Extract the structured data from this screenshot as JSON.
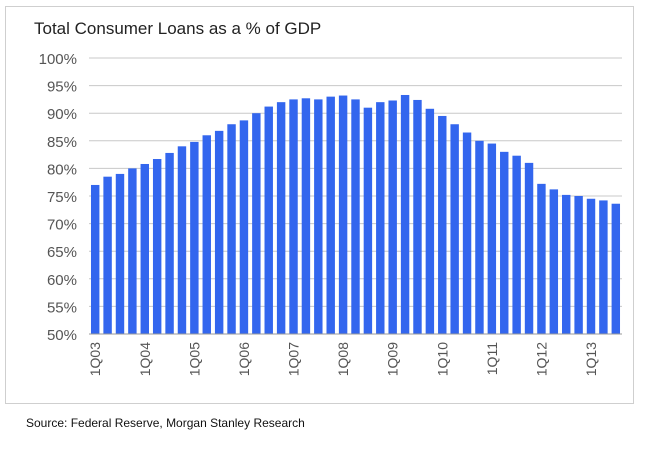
{
  "chart_data": {
    "type": "bar",
    "title": "Total Consumer Loans as a % of GDP",
    "xlabel": "",
    "ylabel": "",
    "ylim": [
      50,
      100
    ],
    "yticks": [
      "50%",
      "55%",
      "60%",
      "65%",
      "70%",
      "75%",
      "80%",
      "85%",
      "90%",
      "95%",
      "100%"
    ],
    "xtick_labels": [
      "1Q03",
      "1Q04",
      "1Q05",
      "1Q06",
      "1Q07",
      "1Q08",
      "1Q09",
      "1Q10",
      "1Q11",
      "1Q12",
      "1Q13"
    ],
    "grid": true,
    "legend": "none",
    "bar_color": "#3366ee",
    "categories": [
      "1Q03",
      "2Q03",
      "3Q03",
      "4Q03",
      "1Q04",
      "2Q04",
      "3Q04",
      "4Q04",
      "1Q05",
      "2Q05",
      "3Q05",
      "4Q05",
      "1Q06",
      "2Q06",
      "3Q06",
      "4Q06",
      "1Q07",
      "2Q07",
      "3Q07",
      "4Q07",
      "1Q08",
      "2Q08",
      "3Q08",
      "4Q08",
      "1Q09",
      "2Q09",
      "3Q09",
      "4Q09",
      "1Q10",
      "2Q10",
      "3Q10",
      "4Q10",
      "1Q11",
      "2Q11",
      "3Q11",
      "4Q11",
      "1Q12",
      "2Q12",
      "3Q12",
      "4Q12",
      "1Q13",
      "2Q13",
      "3Q13"
    ],
    "values": [
      77.0,
      78.5,
      79.0,
      80.0,
      80.8,
      81.7,
      82.8,
      84.0,
      84.8,
      86.0,
      86.8,
      88.0,
      88.7,
      90.0,
      91.2,
      92.0,
      92.5,
      92.7,
      92.5,
      93.0,
      93.2,
      92.5,
      91.0,
      92.0,
      92.3,
      93.3,
      92.4,
      90.8,
      89.5,
      88.0,
      86.5,
      85.0,
      84.5,
      83.0,
      82.3,
      81.0,
      77.2,
      76.2,
      75.2,
      75.0,
      74.5,
      74.2,
      73.6
    ]
  },
  "footer": {
    "source": "Source: Federal Reserve, Morgan Stanley Research"
  }
}
